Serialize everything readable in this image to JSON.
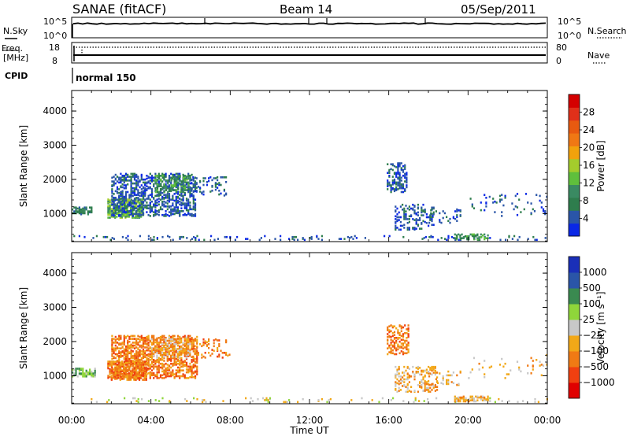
{
  "header": {
    "station": "SANAE (fitACF)",
    "beam": "Beam 14",
    "date": "05/Sep/2011"
  },
  "noise_panel": {
    "left_label": "N.Sky",
    "left_ticks": [
      "10^5",
      "10^0"
    ],
    "right_label": "N.Search",
    "right_ticks": [
      "10^5",
      "10^0"
    ]
  },
  "freq_panel": {
    "left_label_1": "Freq.",
    "left_label_2": "[MHz]",
    "left_ticks": [
      "18",
      "8"
    ],
    "right_label": "Nave",
    "right_ticks": [
      "80",
      "0"
    ]
  },
  "cpid": {
    "label": "CPID",
    "mode": "normal 150"
  },
  "colors": {
    "power_scale": [
      "#0a28e6",
      "#2a55a8",
      "#2e7d4d",
      "#3a8a62",
      "#5fbf3c",
      "#a4cc2c",
      "#f2a20c",
      "#f07814",
      "#e85a10",
      "#e0301a",
      "#d40000"
    ],
    "velocity_scale": [
      "#e00000",
      "#f04010",
      "#f07a14",
      "#f2a818",
      "#c8c8c8",
      "#8fd63a",
      "#3a8a50",
      "#2a55a8",
      "#1a2fb8"
    ]
  },
  "chart_data": [
    {
      "type": "heatmap",
      "name": "power",
      "ylabel": "Slant Range [km]",
      "xlim": [
        0,
        24
      ],
      "ylim": [
        180,
        4600
      ],
      "yticks": [
        "1000",
        "2000",
        "3000",
        "4000"
      ],
      "ytick_values": [
        1000,
        2000,
        3000,
        4000
      ],
      "colorbar_label": "Power [dB]",
      "colorbar_ticks": [
        "4",
        "8",
        "12",
        "16",
        "20",
        "24",
        "28"
      ],
      "colorbar_tick_values": [
        4,
        8,
        12,
        16,
        20,
        24,
        28
      ],
      "colorbar_range": [
        0,
        32
      ],
      "clusters": [
        {
          "t0": 0.0,
          "t1": 1.0,
          "r0": 950,
          "r1": 1150,
          "level": 2,
          "density": 0.5
        },
        {
          "t0": 1.8,
          "t1": 3.6,
          "r0": 850,
          "r1": 1400,
          "level": 4,
          "density": 0.55
        },
        {
          "t0": 2.0,
          "t1": 6.2,
          "r0": 900,
          "r1": 2150,
          "level": 1,
          "density": 0.35
        },
        {
          "t0": 4.2,
          "t1": 6.0,
          "r0": 1600,
          "r1": 2100,
          "level": 3,
          "density": 0.3
        },
        {
          "t0": 6.0,
          "t1": 7.8,
          "r0": 1500,
          "r1": 2050,
          "level": 1,
          "density": 0.12
        },
        {
          "t0": 0.0,
          "t1": 24.0,
          "r0": 200,
          "r1": 330,
          "level": 1,
          "density": 0.08
        },
        {
          "t0": 15.9,
          "t1": 16.9,
          "r0": 1600,
          "r1": 2450,
          "level": 1,
          "density": 0.3
        },
        {
          "t0": 16.3,
          "t1": 18.3,
          "r0": 500,
          "r1": 1250,
          "level": 1,
          "density": 0.22
        },
        {
          "t0": 18.0,
          "t1": 19.6,
          "r0": 700,
          "r1": 1100,
          "level": 1,
          "density": 0.12
        },
        {
          "t0": 19.3,
          "t1": 21.0,
          "r0": 220,
          "r1": 380,
          "level": 3,
          "density": 0.45
        },
        {
          "t0": 20.0,
          "t1": 24.0,
          "r0": 900,
          "r1": 1600,
          "level": 1,
          "density": 0.03
        }
      ]
    },
    {
      "type": "heatmap",
      "name": "velocity",
      "xlabel": "Time UT",
      "xticks": [
        "00:00",
        "04:00",
        "08:00",
        "12:00",
        "16:00",
        "20:00",
        "00:00"
      ],
      "xtick_values": [
        0,
        4,
        8,
        12,
        16,
        20,
        24
      ],
      "ylabel": "Slant Range [km]",
      "xlim": [
        0,
        24
      ],
      "ylim": [
        180,
        4600
      ],
      "yticks": [
        "1000",
        "2000",
        "3000",
        "4000"
      ],
      "ytick_values": [
        1000,
        2000,
        3000,
        4000
      ],
      "colorbar_label": "Velocity [m s⁻¹]",
      "colorbar_ticks": [
        "1000",
        "500",
        "100",
        "25",
        "−25",
        "−100",
        "−500",
        "−1000"
      ],
      "colorbar_range": [
        0,
        9
      ],
      "clusters": [
        {
          "t0": 0.0,
          "t1": 1.2,
          "r0": 950,
          "r1": 1200,
          "level": 5,
          "density": 0.5
        },
        {
          "t0": 1.8,
          "t1": 3.8,
          "r0": 850,
          "r1": 1400,
          "level": 2,
          "density": 0.55
        },
        {
          "t0": 2.0,
          "t1": 6.3,
          "r0": 900,
          "r1": 2150,
          "level": 2,
          "density": 0.4
        },
        {
          "t0": 4.0,
          "t1": 6.0,
          "r0": 1500,
          "r1": 2100,
          "level": 3,
          "density": 0.3
        },
        {
          "t0": 6.0,
          "t1": 8.0,
          "r0": 1500,
          "r1": 2050,
          "level": 2,
          "density": 0.12
        },
        {
          "t0": 0.0,
          "t1": 24.0,
          "r0": 200,
          "r1": 330,
          "level": 4,
          "density": 0.07
        },
        {
          "t0": 15.9,
          "t1": 17.0,
          "r0": 1600,
          "r1": 2450,
          "level": 2,
          "density": 0.25
        },
        {
          "t0": 16.3,
          "t1": 18.4,
          "r0": 500,
          "r1": 1250,
          "level": 3,
          "density": 0.22
        },
        {
          "t0": 18.0,
          "t1": 19.6,
          "r0": 700,
          "r1": 1100,
          "level": 3,
          "density": 0.12
        },
        {
          "t0": 19.3,
          "t1": 21.0,
          "r0": 220,
          "r1": 380,
          "level": 3,
          "density": 0.45
        },
        {
          "t0": 20.0,
          "t1": 24.0,
          "r0": 900,
          "r1": 1600,
          "level": 3,
          "density": 0.03
        }
      ]
    }
  ]
}
